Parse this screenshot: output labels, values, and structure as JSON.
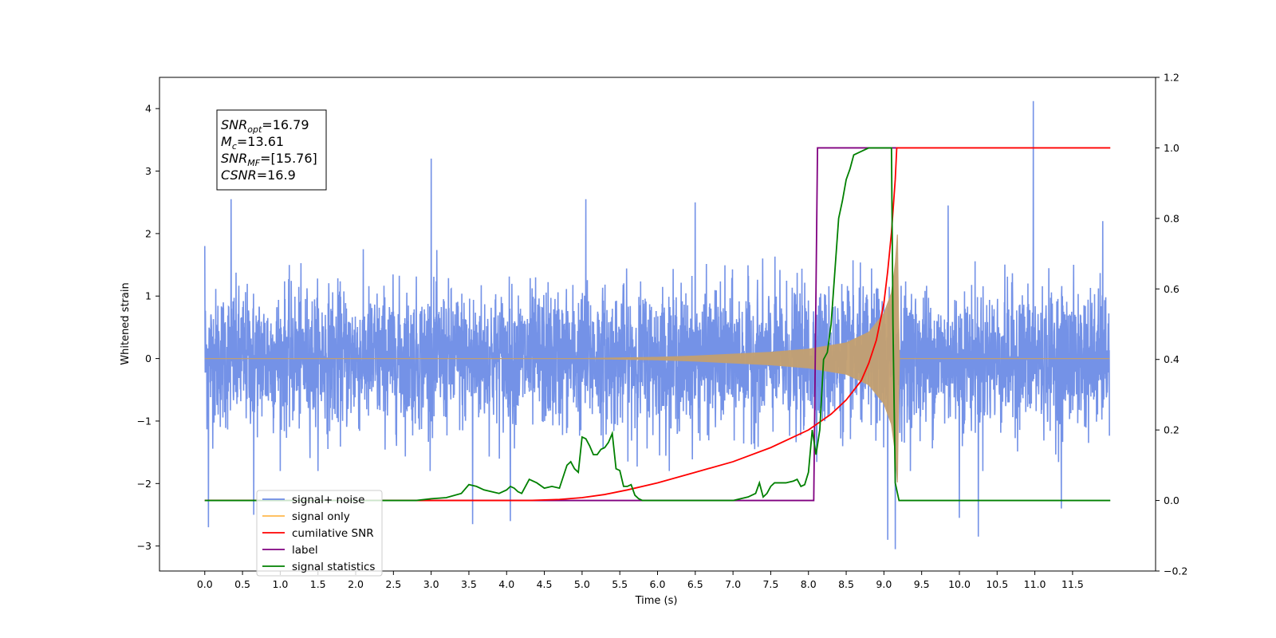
{
  "chart_data": {
    "type": "line",
    "xlabel": "Time (s)",
    "ylabel": "Whitened strain",
    "xlim": [
      -0.6,
      12.6
    ],
    "ylim": [
      -3.4,
      4.5
    ],
    "y2lim": [
      -0.2,
      1.2
    ],
    "x_ticks": [
      "0.0",
      "0.5",
      "1.0",
      "1.5",
      "2.0",
      "2.5",
      "3.0",
      "3.5",
      "4.0",
      "4.5",
      "5.0",
      "5.5",
      "6.0",
      "6.5",
      "7.0",
      "7.5",
      "8.0",
      "8.5",
      "9.0",
      "9.5",
      "10.0",
      "10.5",
      "11.0",
      "11.5"
    ],
    "y_ticks": [
      "−3",
      "−2",
      "−1",
      "0",
      "1",
      "2",
      "3",
      "4"
    ],
    "y2_ticks": [
      "−0.2",
      "0.0",
      "0.2",
      "0.4",
      "0.6",
      "0.8",
      "1.0",
      "1.2"
    ],
    "annotation": {
      "lines": [
        {
          "sym": "SNR",
          "sub": "opt",
          "rest": "=16.79"
        },
        {
          "sym": "M",
          "sub": "c",
          "rest": "=13.61"
        },
        {
          "sym": "SNR",
          "sub": "MF",
          "rest": "=[15.76]"
        },
        {
          "sym": "CSNR",
          "sub": "",
          "rest": "=16.9"
        }
      ]
    },
    "legend": {
      "placement": "lower-left",
      "entries": [
        {
          "label": "signal+ noise",
          "color": "#6d8ce6"
        },
        {
          "label": "signal only",
          "color": "#ffb84d"
        },
        {
          "label": "cumilative SNR",
          "color": "#ff0000"
        },
        {
          "label": "label",
          "color": "#800080"
        },
        {
          "label": "signal statistics",
          "color": "#008000"
        }
      ]
    },
    "series": [
      {
        "name": "signal+ noise",
        "axis": "left",
        "color": "#6d8ce6",
        "description": "white noise, amplitude about ±1.5 with spikes",
        "spikes": [
          [
            0.0,
            1.8
          ],
          [
            0.05,
            -2.7
          ],
          [
            0.35,
            2.55
          ],
          [
            0.65,
            2.7
          ],
          [
            0.65,
            -2.5
          ],
          [
            3.0,
            3.2
          ],
          [
            3.55,
            -2.65
          ],
          [
            4.05,
            -2.6
          ],
          [
            5.05,
            2.55
          ],
          [
            6.5,
            2.5
          ],
          [
            9.05,
            -2.9
          ],
          [
            9.15,
            -3.05
          ],
          [
            9.85,
            2.45
          ],
          [
            10.0,
            -2.55
          ],
          [
            10.25,
            -2.85
          ],
          [
            10.98,
            4.12
          ],
          [
            11.35,
            -2.4
          ],
          [
            11.9,
            2.2
          ]
        ]
      },
      {
        "name": "signal only",
        "axis": "left",
        "color": "#ffb84d",
        "envelope": {
          "x": [
            0,
            5,
            6,
            6.5,
            7,
            7.5,
            8,
            8.5,
            8.8,
            9.0,
            9.1,
            9.15,
            9.18,
            9.2,
            12.0
          ],
          "amp": [
            0.0,
            0.0,
            0.02,
            0.04,
            0.07,
            0.1,
            0.15,
            0.25,
            0.42,
            0.72,
            1.05,
            1.5,
            2.0,
            0.0,
            0.0
          ]
        }
      },
      {
        "name": "cumilative SNR",
        "axis": "right",
        "color": "#ff0000",
        "x": [
          0,
          4.3,
          4.7,
          5.0,
          5.3,
          5.6,
          6.0,
          6.5,
          7.0,
          7.5,
          8.0,
          8.3,
          8.5,
          8.7,
          8.8,
          8.9,
          9.0,
          9.05,
          9.1,
          9.15,
          9.17,
          12.0
        ],
        "y": [
          0,
          0,
          0.003,
          0.008,
          0.017,
          0.03,
          0.05,
          0.08,
          0.11,
          0.15,
          0.2,
          0.245,
          0.285,
          0.34,
          0.39,
          0.455,
          0.56,
          0.65,
          0.76,
          0.91,
          1.0,
          1.0
        ]
      },
      {
        "name": "label",
        "axis": "right",
        "color": "#800080",
        "x": [
          0,
          8.07,
          8.12,
          9.18,
          9.18
        ],
        "y": [
          0,
          0,
          1,
          1,
          1
        ]
      },
      {
        "name": "signal statistics",
        "axis": "right",
        "color": "#008000",
        "x": [
          0,
          2.5,
          2.8,
          3.0,
          3.2,
          3.4,
          3.5,
          3.6,
          3.7,
          3.8,
          3.9,
          4.0,
          4.05,
          4.1,
          4.15,
          4.2,
          4.3,
          4.4,
          4.5,
          4.6,
          4.7,
          4.8,
          4.85,
          4.9,
          4.95,
          5.0,
          5.05,
          5.1,
          5.15,
          5.2,
          5.25,
          5.3,
          5.35,
          5.4,
          5.45,
          5.5,
          5.55,
          5.6,
          5.65,
          5.7,
          5.75,
          5.8,
          5.9,
          6.0,
          7.0,
          7.1,
          7.2,
          7.25,
          7.3,
          7.35,
          7.4,
          7.45,
          7.5,
          7.55,
          7.6,
          7.7,
          7.8,
          7.85,
          7.9,
          7.95,
          8.0,
          8.05,
          8.1,
          8.15,
          8.2,
          8.25,
          8.3,
          8.35,
          8.4,
          8.45,
          8.5,
          8.55,
          8.6,
          8.7,
          8.8,
          8.9,
          9.0,
          9.1,
          9.12,
          9.15,
          9.2,
          12.0
        ],
        "y": [
          0,
          0,
          0,
          0.005,
          0.008,
          0.02,
          0.045,
          0.04,
          0.03,
          0.025,
          0.02,
          0.03,
          0.04,
          0.035,
          0.025,
          0.02,
          0.06,
          0.05,
          0.035,
          0.04,
          0.035,
          0.1,
          0.11,
          0.09,
          0.08,
          0.18,
          0.175,
          0.155,
          0.13,
          0.13,
          0.145,
          0.15,
          0.165,
          0.19,
          0.09,
          0.085,
          0.04,
          0.04,
          0.045,
          0.015,
          0.005,
          0,
          0,
          0,
          0,
          0.005,
          0.01,
          0.015,
          0.02,
          0.05,
          0.01,
          0.02,
          0.04,
          0.05,
          0.05,
          0.05,
          0.055,
          0.06,
          0.04,
          0.045,
          0.08,
          0.2,
          0.13,
          0.2,
          0.4,
          0.42,
          0.5,
          0.65,
          0.8,
          0.85,
          0.91,
          0.94,
          0.98,
          0.99,
          1.0,
          1.0,
          1.0,
          1.0,
          0.5,
          0.05,
          0,
          0
        ]
      }
    ]
  }
}
